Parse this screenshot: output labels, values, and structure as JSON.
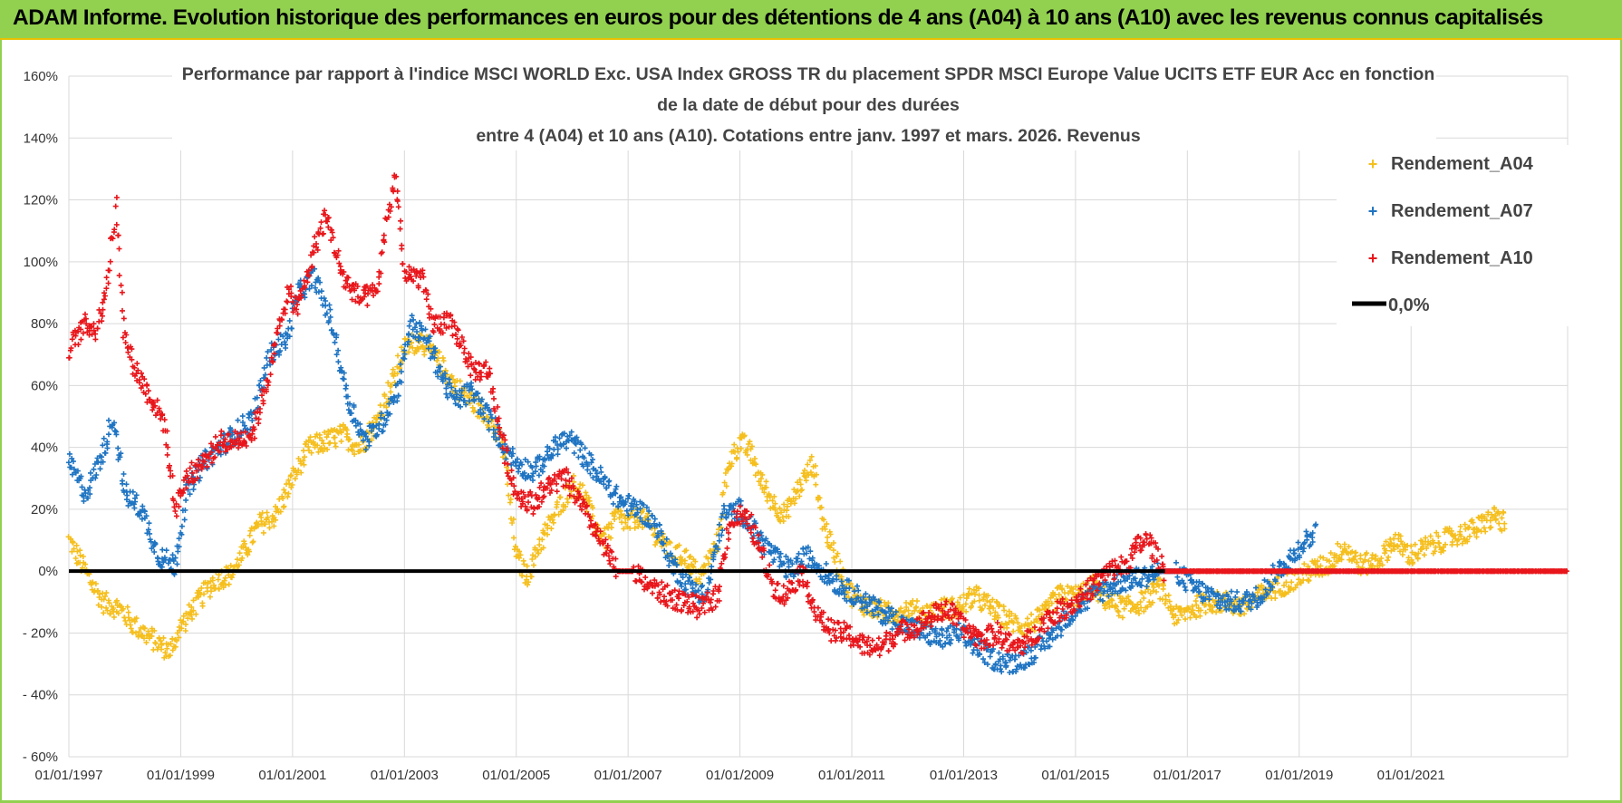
{
  "header": {
    "title": "ADAM Informe. Evolution historique des performances en euros pour des détentions de 4 ans (A04) à 10 ans (A10) avec les revenus connus capitalisés"
  },
  "chart_data": {
    "type": "scatter",
    "title_lines": [
      "Performance par rapport à l'indice MSCI WORLD Exc. USA Index GROSS TR  du placement SPDR MSCI Europe Value UCITS ETF EUR Acc en fonction",
      "de la date de début pour des durées",
      "entre 4 (A04) et 10 ans (A10). Cotations entre janv. 1997 et mars. 2026. Revenus"
    ],
    "x_unit": "year",
    "xlim": [
      1997.0,
      2023.8
    ],
    "ylim": [
      -60,
      160
    ],
    "yticks": [
      -60,
      -40,
      -20,
      0,
      20,
      40,
      60,
      80,
      100,
      120,
      140,
      160
    ],
    "ytick_labels": [
      "- 60%",
      "- 40%",
      "- 20%",
      "0%",
      "20%",
      "40%",
      "60%",
      "80%",
      "100%",
      "120%",
      "140%",
      "160%"
    ],
    "xticks": [
      1997,
      1999,
      2001,
      2003,
      2005,
      2007,
      2009,
      2011,
      2013,
      2015,
      2017,
      2019,
      2021
    ],
    "xtick_labels": [
      "01/01/1997",
      "01/01/1999",
      "01/01/2001",
      "01/01/2003",
      "01/01/2005",
      "01/01/2007",
      "01/01/2009",
      "01/01/2011",
      "01/01/2013",
      "01/01/2015",
      "01/01/2017",
      "01/01/2019",
      "01/01/2021"
    ],
    "legend_position": "top-right",
    "series": [
      {
        "name": "Rendement_A04",
        "color": "#f5bf1e",
        "points": [
          [
            1997.0,
            10
          ],
          [
            1997.3,
            0
          ],
          [
            1997.6,
            -10
          ],
          [
            1997.9,
            -12
          ],
          [
            1998.2,
            -18
          ],
          [
            1998.5,
            -22
          ],
          [
            1998.8,
            -26
          ],
          [
            1999.0,
            -18
          ],
          [
            1999.3,
            -10
          ],
          [
            1999.6,
            -3
          ],
          [
            1999.9,
            -1
          ],
          [
            2000.1,
            5
          ],
          [
            2000.4,
            15
          ],
          [
            2000.7,
            18
          ],
          [
            2001.0,
            30
          ],
          [
            2001.3,
            40
          ],
          [
            2001.6,
            42
          ],
          [
            2001.9,
            44
          ],
          [
            2002.2,
            40
          ],
          [
            2002.5,
            48
          ],
          [
            2002.8,
            62
          ],
          [
            2003.0,
            72
          ],
          [
            2003.3,
            75
          ],
          [
            2003.6,
            68
          ],
          [
            2003.9,
            60
          ],
          [
            2004.2,
            55
          ],
          [
            2004.5,
            50
          ],
          [
            2004.8,
            38
          ],
          [
            2004.9,
            20
          ],
          [
            2005.0,
            5
          ],
          [
            2005.2,
            -2
          ],
          [
            2005.4,
            8
          ],
          [
            2005.6,
            15
          ],
          [
            2005.8,
            22
          ],
          [
            2006.0,
            28
          ],
          [
            2006.2,
            25
          ],
          [
            2006.4,
            15
          ],
          [
            2006.6,
            10
          ],
          [
            2006.8,
            18
          ],
          [
            2007.0,
            15
          ],
          [
            2007.2,
            18
          ],
          [
            2007.5,
            12
          ],
          [
            2007.8,
            5
          ],
          [
            2008.0,
            5
          ],
          [
            2008.3,
            -2
          ],
          [
            2008.6,
            10
          ],
          [
            2008.8,
            35
          ],
          [
            2009.0,
            42
          ],
          [
            2009.2,
            38
          ],
          [
            2009.4,
            28
          ],
          [
            2009.6,
            22
          ],
          [
            2009.8,
            18
          ],
          [
            2010.0,
            25
          ],
          [
            2010.3,
            35
          ],
          [
            2010.5,
            15
          ],
          [
            2010.7,
            5
          ],
          [
            2010.9,
            -5
          ],
          [
            2011.1,
            -10
          ],
          [
            2011.4,
            -12
          ],
          [
            2011.7,
            -14
          ],
          [
            2012.0,
            -12
          ],
          [
            2012.3,
            -14
          ],
          [
            2012.6,
            -12
          ],
          [
            2012.9,
            -12
          ],
          [
            2013.2,
            -8
          ],
          [
            2013.5,
            -12
          ],
          [
            2013.8,
            -16
          ],
          [
            2014.1,
            -18
          ],
          [
            2014.4,
            -15
          ],
          [
            2014.7,
            -8
          ],
          [
            2015.0,
            -8
          ],
          [
            2015.3,
            -5
          ],
          [
            2015.6,
            -10
          ],
          [
            2015.9,
            -12
          ],
          [
            2016.2,
            -10
          ],
          [
            2016.5,
            -5
          ],
          [
            2016.8,
            -15
          ],
          [
            2017.1,
            -12
          ],
          [
            2017.4,
            -10
          ],
          [
            2017.7,
            -10
          ],
          [
            2018.0,
            -12
          ],
          [
            2018.3,
            -8
          ],
          [
            2018.6,
            -5
          ],
          [
            2018.9,
            -3
          ],
          [
            2019.2,
            0
          ],
          [
            2019.5,
            2
          ],
          [
            2019.8,
            8
          ],
          [
            2020.1,
            2
          ],
          [
            2020.4,
            3
          ],
          [
            2020.7,
            10
          ],
          [
            2021.0,
            5
          ],
          [
            2021.3,
            8
          ],
          [
            2021.6,
            10
          ],
          [
            2021.9,
            12
          ],
          [
            2022.2,
            14
          ],
          [
            2022.5,
            18
          ],
          [
            2022.7,
            15
          ]
        ]
      },
      {
        "name": "Rendement_A07",
        "color": "#1f74c2",
        "points": [
          [
            1997.0,
            35
          ],
          [
            1997.3,
            25
          ],
          [
            1997.6,
            38
          ],
          [
            1997.8,
            50
          ],
          [
            1998.0,
            25
          ],
          [
            1998.3,
            20
          ],
          [
            1998.6,
            5
          ],
          [
            1998.9,
            2
          ],
          [
            1999.1,
            25
          ],
          [
            1999.4,
            35
          ],
          [
            1999.7,
            40
          ],
          [
            2000.0,
            45
          ],
          [
            2000.3,
            50
          ],
          [
            2000.6,
            70
          ],
          [
            2000.9,
            75
          ],
          [
            2001.1,
            90
          ],
          [
            2001.4,
            95
          ],
          [
            2001.7,
            80
          ],
          [
            2002.0,
            55
          ],
          [
            2002.3,
            42
          ],
          [
            2002.6,
            48
          ],
          [
            2002.9,
            60
          ],
          [
            2003.1,
            80
          ],
          [
            2003.4,
            75
          ],
          [
            2003.7,
            62
          ],
          [
            2003.9,
            55
          ],
          [
            2004.2,
            58
          ],
          [
            2004.5,
            50
          ],
          [
            2004.8,
            40
          ],
          [
            2005.0,
            35
          ],
          [
            2005.3,
            32
          ],
          [
            2005.6,
            38
          ],
          [
            2005.8,
            42
          ],
          [
            2006.0,
            42
          ],
          [
            2006.3,
            35
          ],
          [
            2006.6,
            28
          ],
          [
            2006.9,
            22
          ],
          [
            2007.2,
            20
          ],
          [
            2007.5,
            15
          ],
          [
            2007.8,
            2
          ],
          [
            2008.1,
            -5
          ],
          [
            2008.4,
            -8
          ],
          [
            2008.7,
            18
          ],
          [
            2009.0,
            20
          ],
          [
            2009.3,
            12
          ],
          [
            2009.6,
            5
          ],
          [
            2009.9,
            0
          ],
          [
            2010.2,
            5
          ],
          [
            2010.5,
            0
          ],
          [
            2010.8,
            -5
          ],
          [
            2011.1,
            -8
          ],
          [
            2011.4,
            -12
          ],
          [
            2011.7,
            -15
          ],
          [
            2012.0,
            -18
          ],
          [
            2012.3,
            -20
          ],
          [
            2012.6,
            -22
          ],
          [
            2012.9,
            -20
          ],
          [
            2013.2,
            -24
          ],
          [
            2013.5,
            -28
          ],
          [
            2013.8,
            -30
          ],
          [
            2014.1,
            -28
          ],
          [
            2014.4,
            -24
          ],
          [
            2014.7,
            -18
          ],
          [
            2015.0,
            -12
          ],
          [
            2015.3,
            -8
          ],
          [
            2015.6,
            -5
          ],
          [
            2015.9,
            -3
          ],
          [
            2016.2,
            -2
          ],
          [
            2016.5,
            0
          ],
          [
            2016.8,
            0
          ],
          [
            2017.1,
            -5
          ],
          [
            2017.4,
            -8
          ],
          [
            2017.7,
            -10
          ],
          [
            2018.0,
            -10
          ],
          [
            2018.3,
            -8
          ],
          [
            2018.6,
            0
          ],
          [
            2018.9,
            5
          ],
          [
            2019.1,
            10
          ],
          [
            2019.3,
            12
          ]
        ]
      },
      {
        "name": "Rendement_A10",
        "color": "#e8161b",
        "points": [
          [
            1997.0,
            72
          ],
          [
            1997.3,
            80
          ],
          [
            1997.5,
            78
          ],
          [
            1997.7,
            95
          ],
          [
            1997.85,
            118
          ],
          [
            1998.0,
            75
          ],
          [
            1998.2,
            65
          ],
          [
            1998.5,
            55
          ],
          [
            1998.7,
            48
          ],
          [
            1998.9,
            20
          ],
          [
            1999.1,
            30
          ],
          [
            1999.4,
            35
          ],
          [
            1999.7,
            42
          ],
          [
            2000.0,
            42
          ],
          [
            2000.3,
            45
          ],
          [
            2000.6,
            65
          ],
          [
            2000.9,
            90
          ],
          [
            2001.1,
            85
          ],
          [
            2001.4,
            105
          ],
          [
            2001.6,
            115
          ],
          [
            2001.9,
            95
          ],
          [
            2002.2,
            88
          ],
          [
            2002.5,
            90
          ],
          [
            2002.7,
            115
          ],
          [
            2002.85,
            128
          ],
          [
            2003.0,
            95
          ],
          [
            2003.3,
            95
          ],
          [
            2003.5,
            80
          ],
          [
            2003.8,
            80
          ],
          [
            2004.0,
            75
          ],
          [
            2004.2,
            65
          ],
          [
            2004.5,
            65
          ],
          [
            2004.8,
            38
          ],
          [
            2005.0,
            25
          ],
          [
            2005.3,
            22
          ],
          [
            2005.6,
            28
          ],
          [
            2005.9,
            30
          ],
          [
            2006.2,
            20
          ],
          [
            2006.5,
            10
          ],
          [
            2006.8,
            0
          ],
          [
            2007.1,
            0
          ],
          [
            2007.4,
            -5
          ],
          [
            2007.7,
            -8
          ],
          [
            2008.0,
            -10
          ],
          [
            2008.3,
            -12
          ],
          [
            2008.6,
            -8
          ],
          [
            2008.8,
            15
          ],
          [
            2009.0,
            18
          ],
          [
            2009.2,
            15
          ],
          [
            2009.4,
            5
          ],
          [
            2009.6,
            -5
          ],
          [
            2009.8,
            -8
          ],
          [
            2010.1,
            0
          ],
          [
            2010.4,
            -15
          ],
          [
            2010.7,
            -20
          ],
          [
            2010.9,
            -20
          ],
          [
            2011.2,
            -24
          ],
          [
            2011.5,
            -25
          ],
          [
            2011.8,
            -20
          ],
          [
            2012.1,
            -18
          ],
          [
            2012.4,
            -15
          ],
          [
            2012.7,
            -12
          ],
          [
            2013.0,
            -18
          ],
          [
            2013.3,
            -22
          ],
          [
            2013.6,
            -20
          ],
          [
            2013.9,
            -25
          ],
          [
            2014.2,
            -22
          ],
          [
            2014.5,
            -15
          ],
          [
            2014.8,
            -12
          ],
          [
            2015.0,
            -10
          ],
          [
            2015.3,
            -5
          ],
          [
            2015.6,
            0
          ],
          [
            2015.9,
            2
          ],
          [
            2016.1,
            8
          ],
          [
            2016.3,
            10
          ],
          [
            2016.6,
            0
          ],
          [
            2017.0,
            0
          ],
          [
            2017.5,
            0
          ],
          [
            2018.0,
            0
          ],
          [
            2018.5,
            0
          ],
          [
            2019.0,
            0
          ],
          [
            2019.5,
            0
          ],
          [
            2020.0,
            0
          ],
          [
            2020.5,
            0
          ],
          [
            2021.0,
            0
          ],
          [
            2021.5,
            0
          ],
          [
            2022.0,
            0
          ],
          [
            2022.5,
            0
          ],
          [
            2023.0,
            0
          ],
          [
            2023.5,
            0
          ],
          [
            2023.8,
            0
          ]
        ]
      }
    ],
    "reference_line": {
      "name": "0,0%",
      "y": 0,
      "color": "#000000"
    }
  }
}
